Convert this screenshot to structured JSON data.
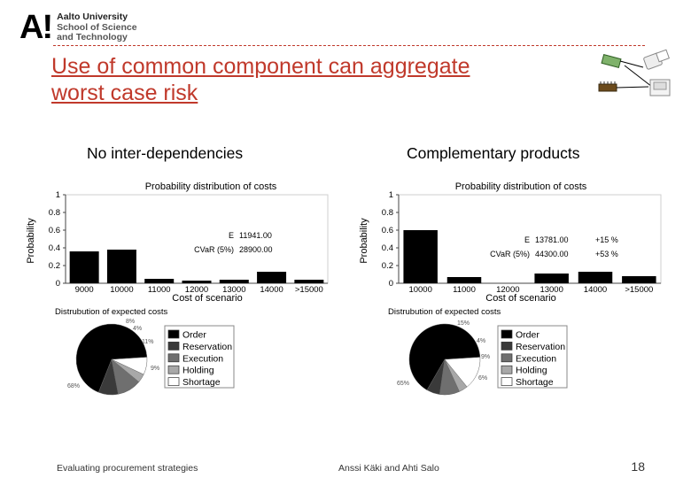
{
  "header": {
    "logo_mark": "A!",
    "logo_lines": [
      "Aalto University",
      "School of Science",
      "and Technology"
    ],
    "title_line1": "Use of common component can aggregate",
    "title_line2": "worst case risk"
  },
  "left": {
    "section_title": "No inter-dependencies",
    "bar": {
      "title": "Probability distribution of costs",
      "ylabel": "Probability",
      "xlabel": "Cost of scenario",
      "yticks": [
        "0",
        "0.2",
        "0.4",
        "0.6",
        "0.8",
        "1"
      ],
      "annotation_e_label": "E",
      "annotation_e_value": "11941.00",
      "annotation_cvar_label": "CVaR (5%)",
      "annotation_cvar_value": "28900.00"
    },
    "pie": {
      "title": "Distrubution of expected costs",
      "labels": [
        "8%",
        "4%",
        "11%",
        "9%",
        "68%"
      ]
    }
  },
  "right": {
    "section_title": "Complementary products",
    "bar": {
      "title": "Probability distribution of costs",
      "ylabel": "Probability",
      "xlabel": "Cost of scenario",
      "yticks": [
        "0",
        "0.2",
        "0.4",
        "0.6",
        "0.8",
        "1"
      ],
      "annotation_e_label": "E",
      "annotation_e_value": "13781.00",
      "annotation_e_delta": "+15 %",
      "annotation_cvar_label": "CVaR (5%)",
      "annotation_cvar_value": "44300.00",
      "annotation_cvar_delta": "+53 %"
    },
    "pie": {
      "title": "Distrubution of expected costs",
      "labels": [
        "15%",
        "4%",
        "9%",
        "6%",
        "65%"
      ]
    }
  },
  "legend": [
    "Order",
    "Reservation",
    "Execution",
    "Holding",
    "Shortage"
  ],
  "legend_colors": [
    "#000000",
    "#3a3a3a",
    "#6f6f6f",
    "#a8a8a8",
    "#ffffff"
  ],
  "chart_data": [
    {
      "type": "bar",
      "title": "Probability distribution of costs",
      "xlabel": "Cost of scenario",
      "ylabel": "Probability",
      "ylim": [
        0,
        1
      ],
      "categories": [
        "9000",
        "10000",
        "11000",
        "12000",
        "13000",
        "14000",
        ">15000"
      ],
      "values": [
        0.36,
        0.38,
        0.05,
        0.03,
        0.04,
        0.13,
        0.04
      ],
      "grid": false
    },
    {
      "type": "pie",
      "title": "Distrubution of expected costs",
      "categories": [
        "Order",
        "Reservation",
        "Execution",
        "Holding",
        "Shortage"
      ],
      "values": [
        68,
        9,
        11,
        4,
        8
      ],
      "legend": "right"
    },
    {
      "type": "bar",
      "title": "Probability distribution of costs",
      "xlabel": "Cost of scenario",
      "ylabel": "Probability",
      "ylim": [
        0,
        1
      ],
      "categories": [
        "10000",
        "11000",
        "12000",
        "13000",
        "14000",
        ">15000"
      ],
      "values": [
        0.6,
        0.07,
        0.0,
        0.11,
        0.13,
        0.08
      ],
      "grid": false
    },
    {
      "type": "pie",
      "title": "Distrubution of expected costs",
      "categories": [
        "Order",
        "Reservation",
        "Execution",
        "Holding",
        "Shortage"
      ],
      "values": [
        65,
        6,
        9,
        4,
        15
      ],
      "legend": "right"
    }
  ],
  "footer": {
    "left": "Evaluating procurement strategies",
    "center": "Anssi Käki and Ahti Salo",
    "page": "18"
  }
}
